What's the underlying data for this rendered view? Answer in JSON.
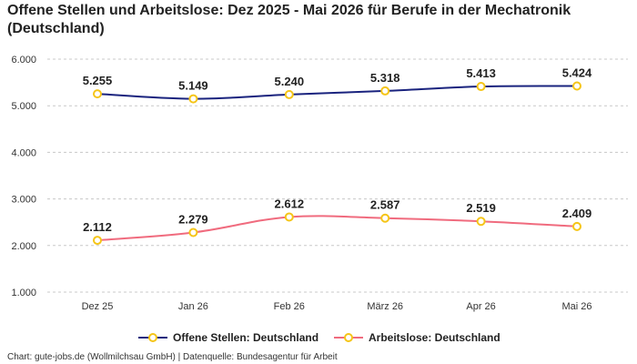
{
  "chart_data": {
    "type": "line",
    "title": "Offene Stellen und Arbeitslose: Dez 2025 - Mai 2026 für Berufe in der Mechatronik (Deutschland)",
    "categories": [
      "Dez 25",
      "Jan 26",
      "Feb 26",
      "März 26",
      "Apr 26",
      "Mai 26"
    ],
    "y_ticks": [
      "1.000",
      "2.000",
      "3.000",
      "4.000",
      "5.000",
      "6.000"
    ],
    "ylim": [
      1000,
      6000
    ],
    "grid": true,
    "legend_position": "bottom",
    "series": [
      {
        "name": "Offene Stellen: Deutschland",
        "values": [
          5255,
          5149,
          5240,
          5318,
          5413,
          5424
        ],
        "labels": [
          "5.255",
          "5.149",
          "5.240",
          "5.318",
          "5.413",
          "5.424"
        ],
        "color": "#1a237e"
      },
      {
        "name": "Arbeitslose: Deutschland",
        "values": [
          2112,
          2279,
          2612,
          2587,
          2519,
          2409
        ],
        "labels": [
          "2.112",
          "2.279",
          "2.612",
          "2.587",
          "2.519",
          "2.409"
        ],
        "color": "#f06b7e"
      }
    ],
    "marker_color": "#f5c518"
  },
  "footer": "Chart: gute-jobs.de (Wollmilchsau GmbH) | Datenquelle: Bundesagentur für Arbeit"
}
